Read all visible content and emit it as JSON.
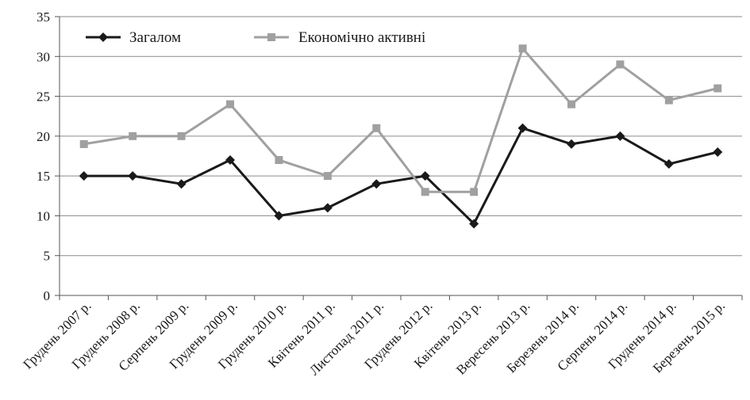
{
  "chart_data": {
    "type": "line",
    "title": "",
    "xlabel": "",
    "ylabel": "",
    "ylim": [
      0,
      35
    ],
    "yticks": [
      0,
      5,
      10,
      15,
      20,
      25,
      30,
      35
    ],
    "grid": true,
    "legend_position": "top-left",
    "categories": [
      "Грудень 2007 р.",
      "Грудень 2008 р.",
      "Серпень 2009 р.",
      "Грудень 2009 р.",
      "Грудень 2010 р.",
      "Квітень 2011 р.",
      "Листопад 2011 р.",
      "Грудень 2012 р.",
      "Квітень 2013 р.",
      "Вересень 2013 р.",
      "Березень 2014 р.",
      "Серпень 2014 р.",
      "Грудень 2014 р.",
      "Березень 2015 р."
    ],
    "series": [
      {
        "name": "Загалом",
        "color": "#1a1a1a",
        "marker": "diamond",
        "values": [
          15,
          15,
          14,
          17,
          10,
          11,
          14,
          15,
          9,
          21,
          19,
          20,
          16.5,
          18
        ]
      },
      {
        "name": "Економічно активні",
        "color": "#a0a0a0",
        "marker": "square",
        "values": [
          19,
          20,
          20,
          24,
          17,
          15,
          21,
          13,
          13,
          31,
          24,
          29,
          24.5,
          26
        ]
      }
    ]
  }
}
